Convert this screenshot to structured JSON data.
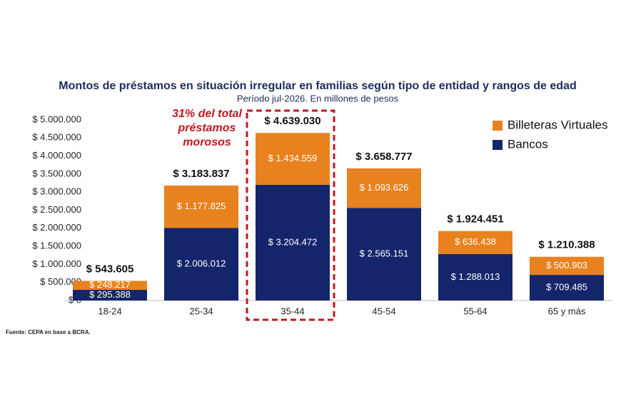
{
  "chart_data": {
    "type": "stacked-bar",
    "title": "Montos de préstamos en situación irregular en familias según tipo de entidad y rangos de edad",
    "subtitle": "Período jul-2026. En millones de pesos",
    "categories": [
      "18-24",
      "25-34",
      "35-44",
      "45-54",
      "55-64",
      "65 y más"
    ],
    "series": [
      {
        "name": "Bancos",
        "color": "#14256b",
        "values": [
          295388,
          2006012,
          3204472,
          2565151,
          1288013,
          709485
        ],
        "value_labels": [
          "$ 295.388",
          "$ 2.006.012",
          "$ 3.204.472",
          "$ 2.565.151",
          "$ 1.288.013",
          "$ 709.485"
        ]
      },
      {
        "name": "Billeteras Virtuales",
        "color": "#e8821e",
        "values": [
          248217,
          1177825,
          1434559,
          1093626,
          636438,
          500903
        ],
        "value_labels": [
          "$ 248.217",
          "$ 1.177.825",
          "$ 1.434.559",
          "$ 1.093.626",
          "$ 636.438",
          "$ 500.903"
        ]
      }
    ],
    "totals": {
      "values": [
        543605,
        3183837,
        4639030,
        3658777,
        1924451,
        1210388
      ],
      "value_labels": [
        "$ 543.605",
        "$ 3.183.837",
        "$ 4.639.030",
        "$ 3.658.777",
        "$ 1.924.451",
        "$ 1.210.388"
      ]
    },
    "ylim": [
      0,
      5000000
    ],
    "yticks": [
      {
        "value": 0,
        "label": "$ 0"
      },
      {
        "value": 500000,
        "label": "$ 500.000"
      },
      {
        "value": 1000000,
        "label": "$ 1.000.000"
      },
      {
        "value": 1500000,
        "label": "$ 1.500.000"
      },
      {
        "value": 2000000,
        "label": "$ 2.000.000"
      },
      {
        "value": 2500000,
        "label": "$ 2.500.000"
      },
      {
        "value": 3000000,
        "label": "$ 3.000.000"
      },
      {
        "value": 3500000,
        "label": "$ 3.500.000"
      },
      {
        "value": 4000000,
        "label": "$ 4.000.000"
      },
      {
        "value": 4500000,
        "label": "$ 4.500.000"
      },
      {
        "value": 5000000,
        "label": "$ 5.000.000"
      }
    ],
    "grid": false,
    "legend": "top-right",
    "annotation": [
      "31% del total",
      "préstamos",
      "morosos"
    ],
    "source": "Fuente: CEPA en base a BCRA."
  }
}
